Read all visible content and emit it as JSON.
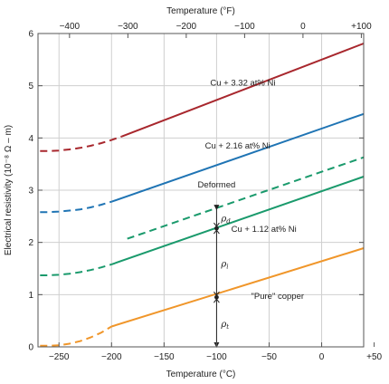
{
  "chart_data": {
    "type": "line",
    "xlabel_bottom": "Temperature (°C)",
    "xlabel_top": "Temperature (°F)",
    "ylabel": "Electrical resistivity (10⁻⁸ Ω – m)",
    "xlim": [
      -270,
      40
    ],
    "ylim": [
      0,
      6
    ],
    "x_ticks_bottom": [
      -250,
      -200,
      -150,
      -100,
      -50,
      0,
      50
    ],
    "x_tick_labels_bottom": [
      "−250",
      "−200",
      "−150",
      "−100",
      "−50",
      "0",
      "+50"
    ],
    "x_ticks_top_F": [
      -400,
      -300,
      -200,
      -100,
      0,
      100
    ],
    "x_tick_labels_top": [
      "−400",
      "−300",
      "−200",
      "−100",
      "0",
      "+100"
    ],
    "y_ticks": [
      0,
      1,
      2,
      3,
      4,
      5,
      6
    ],
    "y_tick_labels": [
      "0",
      "1",
      "2",
      "3",
      "4",
      "5",
      "6"
    ],
    "grid": true,
    "series": [
      {
        "name": "Cu + 3.32 at% Ni",
        "color": "#a8272d",
        "dashed_x": [
          -268,
          -260,
          -250,
          -240,
          -230,
          -220,
          -210,
          -200,
          -190
        ],
        "dashed_y": [
          3.75,
          3.75,
          3.76,
          3.78,
          3.81,
          3.85,
          3.9,
          3.96,
          4.03
        ],
        "solid_x": [
          -190,
          40
        ],
        "solid_y": [
          4.03,
          5.81
        ]
      },
      {
        "name": "Cu + 2.16 at% Ni",
        "color": "#1f74b4",
        "dashed_x": [
          -268,
          -260,
          -250,
          -240,
          -230,
          -220,
          -210,
          -200
        ],
        "dashed_y": [
          2.58,
          2.58,
          2.59,
          2.61,
          2.63,
          2.67,
          2.72,
          2.78
        ],
        "solid_x": [
          -200,
          40
        ],
        "solid_y": [
          2.78,
          4.46
        ]
      },
      {
        "name": "Deformed",
        "color": "#1a9a6c",
        "dashed_x": [
          -185,
          40
        ],
        "dashed_y": [
          2.07,
          3.63
        ]
      },
      {
        "name": "Cu + 1.12 at% Ni",
        "color": "#1a9a6c",
        "dashed_x": [
          -268,
          -260,
          -250,
          -240,
          -230,
          -220,
          -210,
          -200
        ],
        "dashed_y": [
          1.37,
          1.37,
          1.38,
          1.4,
          1.43,
          1.47,
          1.52,
          1.58
        ],
        "solid_x": [
          -200,
          40
        ],
        "solid_y": [
          1.58,
          3.26
        ]
      },
      {
        "name": "\"Pure\" copper",
        "color": "#f0962a",
        "dashed_x": [
          -268,
          -260,
          -250,
          -240,
          -230,
          -220,
          -210,
          -200
        ],
        "dashed_y": [
          0.02,
          0.02,
          0.03,
          0.06,
          0.11,
          0.18,
          0.27,
          0.39
        ],
        "solid_x": [
          -200,
          40
        ],
        "solid_y": [
          0.39,
          1.89
        ]
      }
    ],
    "annotations": [
      {
        "text": "Cu + 3.32 at% Ni",
        "x": -75,
        "y": 5.0
      },
      {
        "text": "Cu + 2.16 at% Ni",
        "x": -80,
        "y": 3.8
      },
      {
        "text": "Deformed",
        "x": -100,
        "y": 3.05
      },
      {
        "text": "Cu + 1.12 at% Ni",
        "x": -55,
        "y": 2.2
      },
      {
        "text": "\"Pure\" copper",
        "x": -42,
        "y": 0.92
      }
    ],
    "rho_marker": {
      "x": -100,
      "y_bottom": 0,
      "y_pure": 0.95,
      "y_112": 2.27,
      "y_deformed": 2.65,
      "labels": [
        {
          "symbol": "ρ",
          "sub": "d",
          "y": 2.47
        },
        {
          "symbol": "ρ",
          "sub": "i",
          "y": 1.6
        },
        {
          "symbol": "ρ",
          "sub": "t",
          "y": 0.45
        }
      ]
    }
  }
}
